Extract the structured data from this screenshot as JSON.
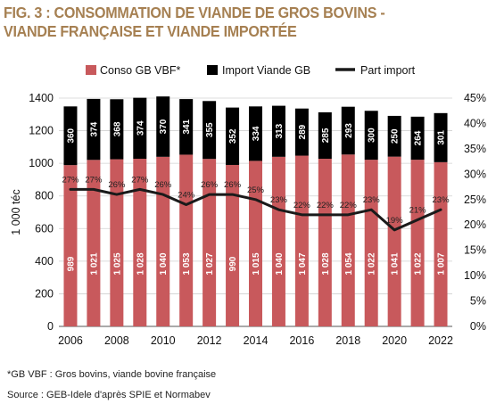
{
  "title_line1": "FIG. 3 : CONSOMMATION DE VIANDE DE GROS BOVINS -",
  "title_line2": "VIANDE FRANÇAISE ET VIANDE IMPORTÉE",
  "footnote": "*GB VBF : Gros bovins, viande bovine française",
  "source": "Source : GEB-Idele d'après SPIE et Normabev",
  "colors": {
    "title": "#a68052",
    "conso": "#c8595c",
    "import": "#000000",
    "part_line": "#1a1a1a",
    "grid": "#d0d0d0"
  },
  "chart_data": {
    "type": "bar",
    "stacked": true,
    "categories": [
      "2006",
      "2007",
      "2008",
      "2009",
      "2010",
      "2011",
      "2012",
      "2013",
      "2014",
      "2015",
      "2016",
      "2017",
      "2018",
      "2019",
      "2020",
      "2021",
      "2022"
    ],
    "x_tick_labels": [
      "2006",
      "2008",
      "2010",
      "2012",
      "2014",
      "2016",
      "2018",
      "2020",
      "2022"
    ],
    "ylabel": "1 000 téc",
    "ylim": [
      0,
      1400
    ],
    "yticks": [
      "0",
      "200",
      "400",
      "600",
      "800",
      "1000",
      "1200",
      "1400"
    ],
    "y2lim": [
      0,
      45
    ],
    "y2ticks": [
      "0%",
      "5%",
      "10%",
      "15%",
      "20%",
      "25%",
      "30%",
      "35%",
      "40%",
      "45%"
    ],
    "grid": true,
    "legend_position": "top",
    "series": [
      {
        "name": "Conso GB VBF*",
        "kind": "bar",
        "values": [
          989,
          1021,
          1025,
          1028,
          1040,
          1053,
          1027,
          990,
          1015,
          1040,
          1047,
          1028,
          1054,
          1022,
          1041,
          1022,
          1007
        ],
        "labels": [
          "989",
          "1 021",
          "1 025",
          "1 028",
          "1 040",
          "1 053",
          "1 027",
          "990",
          "1 015",
          "1 040",
          "1 047",
          "1 028",
          "1 054",
          "1 022",
          "1 041",
          "1 022",
          "1 007"
        ]
      },
      {
        "name": "Import Viande GB",
        "kind": "bar",
        "values": [
          360,
          374,
          368,
          374,
          370,
          341,
          355,
          352,
          334,
          313,
          289,
          285,
          293,
          300,
          250,
          264,
          301
        ],
        "labels": [
          "360",
          "374",
          "368",
          "374",
          "370",
          "341",
          "355",
          "352",
          "334",
          "313",
          "289",
          "285",
          "293",
          "300",
          "250",
          "264",
          "301"
        ]
      },
      {
        "name": "Part import",
        "kind": "line",
        "axis": "right",
        "values": [
          27,
          27,
          26,
          27,
          26,
          24,
          26,
          26,
          25,
          23,
          22,
          22,
          22,
          23,
          19,
          21,
          23
        ],
        "labels": [
          "27%",
          "27%",
          "26%",
          "27%",
          "26%",
          "24%",
          "26%",
          "26%",
          "25%",
          "23%",
          "22%",
          "22%",
          "22%",
          "23%",
          "19%",
          "21%",
          "23%"
        ]
      }
    ]
  }
}
